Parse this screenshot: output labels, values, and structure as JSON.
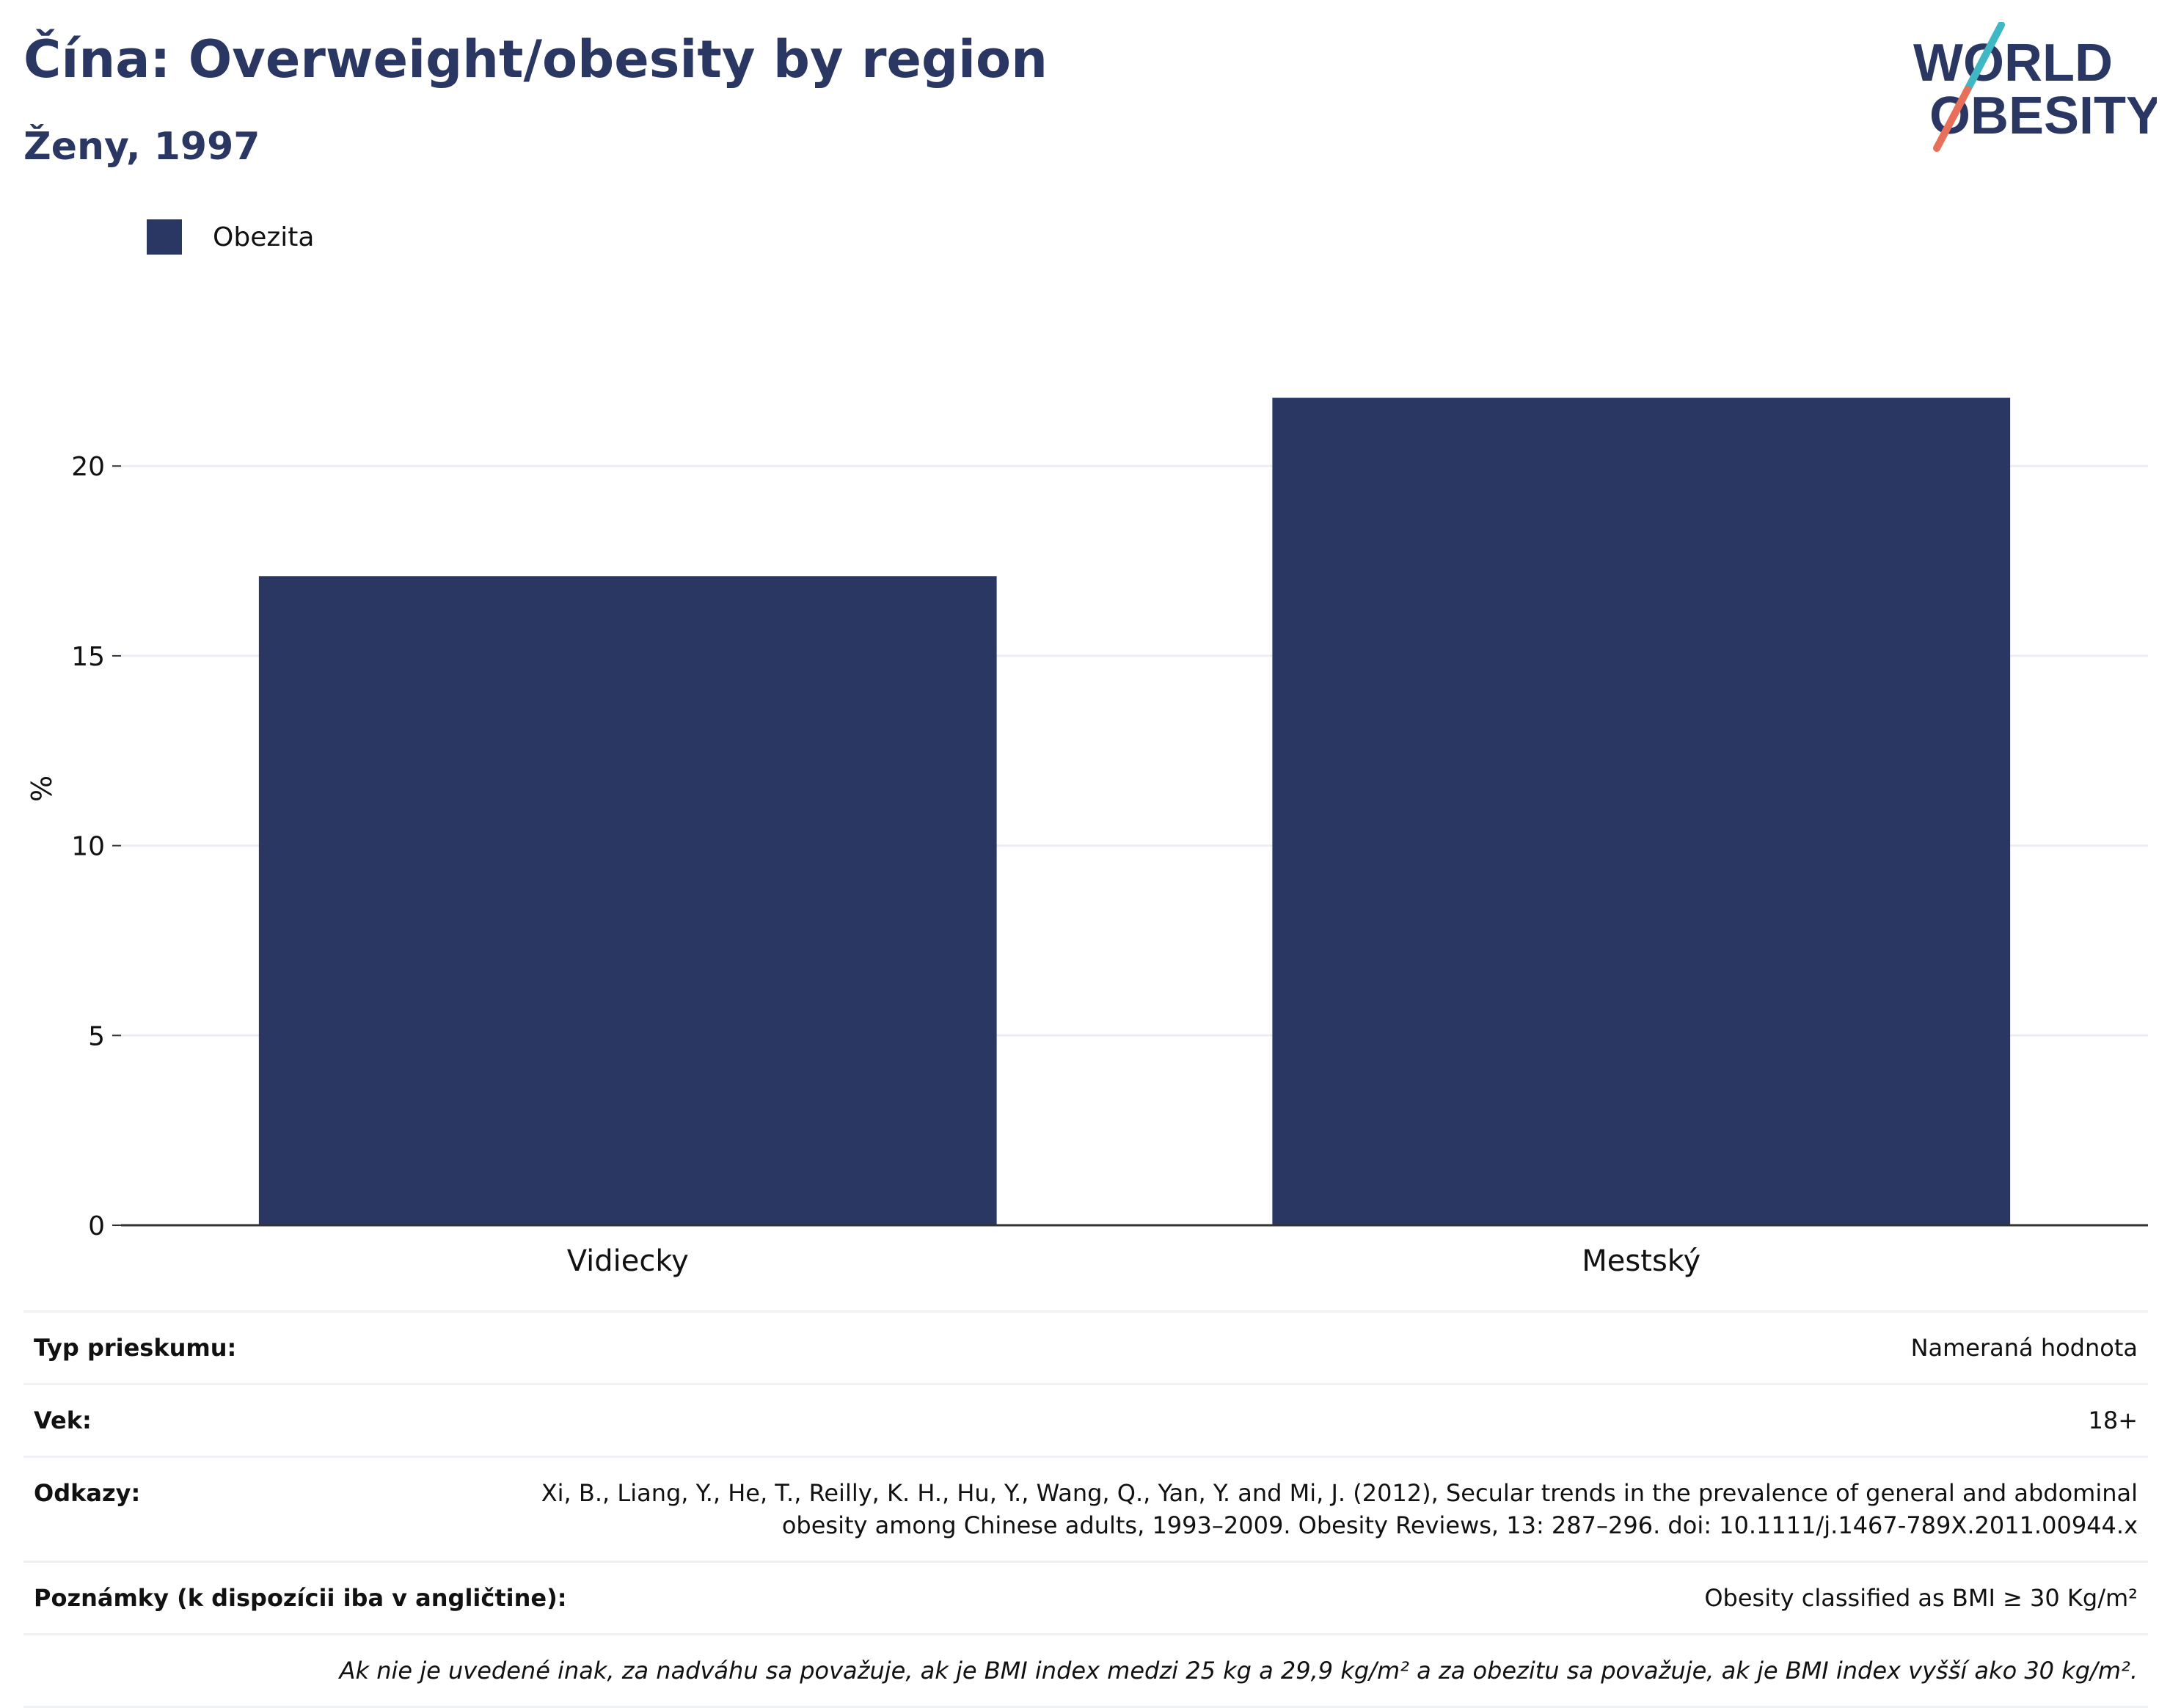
{
  "header": {
    "title": "Čína: Overweight/obesity by region",
    "subtitle": "Ženy, 1997",
    "logo_line1": "WORLD",
    "logo_line2": "OBESITY"
  },
  "legend": {
    "label": "Obezita"
  },
  "colors": {
    "bar": "#2b3763",
    "title": "#2b3763",
    "logo_slash_top": "#3fb8c4",
    "logo_slash_bottom": "#e8705a",
    "grid": "#eceef3",
    "axis": "#333333"
  },
  "chart_data": {
    "type": "bar",
    "title": "Čína: Overweight/obesity by region",
    "subtitle": "Ženy, 1997",
    "categories": [
      "Vidiecky",
      "Mestský"
    ],
    "series": [
      {
        "name": "Obezita",
        "values": [
          17.1,
          21.8
        ]
      }
    ],
    "xlabel": "",
    "ylabel": "%",
    "ylim": [
      0,
      23
    ],
    "yticks": [
      0,
      5,
      10,
      15,
      20
    ],
    "grid": true,
    "legend_position": "top-left"
  },
  "meta": {
    "rows": [
      {
        "key": "Typ prieskumu:",
        "value": "Nameraná hodnota"
      },
      {
        "key": "Vek:",
        "value": "18+"
      },
      {
        "key": "Odkazy:",
        "value": "Xi, B., Liang, Y., He, T., Reilly, K. H., Hu, Y., Wang, Q., Yan, Y. and Mi, J. (2012), Secular trends in the prevalence of general and abdominal obesity among Chinese adults, 1993–2009. Obesity Reviews, 13: 287–296. doi: 10.1111/j.1467-789X.2011.00944.x"
      },
      {
        "key": "Poznámky (k dispozícii iba v angličtine):",
        "value": "Obesity classified as BMI ≥ 30 Kg/m²"
      }
    ],
    "footnote": "Ak nie je uvedené inak, za nadváhu sa považuje, ak je BMI index medzi 25 kg a 29,9 kg/m² a za obezitu sa považuje, ak je BMI index vyšší ako 30 kg/m²."
  }
}
